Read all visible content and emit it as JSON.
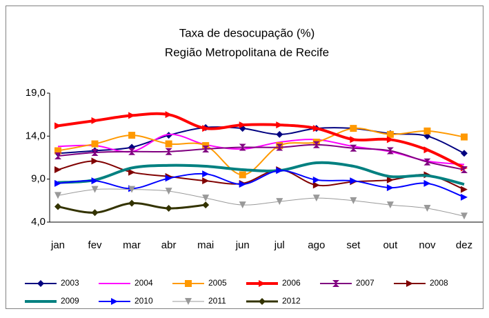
{
  "chart_data": {
    "type": "line",
    "title": "Taxa de desocupação (%)",
    "subtitle": "Região Metropolitana de Recife",
    "categories": [
      "jan",
      "fev",
      "mar",
      "abr",
      "mai",
      "jun",
      "jul",
      "ago",
      "set",
      "out",
      "nov",
      "dez"
    ],
    "ylim": [
      4,
      19
    ],
    "yticks": [
      {
        "value": 4,
        "label": "4,0"
      },
      {
        "value": 9,
        "label": "9,0"
      },
      {
        "value": 14,
        "label": "14,0"
      },
      {
        "value": 19,
        "label": "19,0"
      }
    ],
    "grid": false,
    "legend": "bottom",
    "series": [
      {
        "name": "2003",
        "color": "#000080",
        "marker": "diamond",
        "width": 2,
        "values": [
          12.0,
          12.3,
          12.7,
          14.1,
          15.0,
          14.9,
          14.2,
          14.9,
          14.9,
          14.3,
          14.0,
          12.0
        ]
      },
      {
        "name": "2004",
        "color": "#ff00ff",
        "marker": "none",
        "width": 2,
        "values": [
          12.8,
          12.9,
          12.2,
          14.2,
          13.0,
          12.5,
          13.3,
          13.6,
          12.8,
          12.2,
          11.1,
          10.7
        ]
      },
      {
        "name": "2005",
        "color": "#ff9900",
        "marker": "square",
        "width": 2,
        "values": [
          12.3,
          13.1,
          14.1,
          13.1,
          12.9,
          9.5,
          12.9,
          13.3,
          14.9,
          14.2,
          14.6,
          13.9
        ]
      },
      {
        "name": "2006",
        "color": "#ff0000",
        "marker": "triangle-right",
        "width": 4,
        "values": [
          15.2,
          15.8,
          16.4,
          16.5,
          14.9,
          15.3,
          15.3,
          14.9,
          13.6,
          13.6,
          12.4,
          10.3
        ]
      },
      {
        "name": "2007",
        "color": "#800080",
        "marker": "hourglass",
        "width": 2,
        "values": [
          11.7,
          12.1,
          12.2,
          12.2,
          12.5,
          12.7,
          12.7,
          13.0,
          12.6,
          12.3,
          11.0,
          10.1
        ]
      },
      {
        "name": "2008",
        "color": "#800000",
        "marker": "triangle-right",
        "width": 2,
        "values": [
          10.1,
          11.1,
          9.8,
          9.3,
          8.8,
          8.5,
          10.1,
          8.3,
          8.7,
          8.9,
          9.5,
          7.8
        ]
      },
      {
        "name": "2009",
        "color": "#008080",
        "marker": "none",
        "width": 4,
        "values": [
          8.6,
          8.9,
          10.3,
          10.6,
          10.5,
          10.1,
          10.0,
          10.9,
          10.5,
          9.3,
          9.4,
          8.4
        ]
      },
      {
        "name": "2010",
        "color": "#0000ff",
        "marker": "triangle-right",
        "width": 2,
        "values": [
          8.5,
          8.8,
          7.9,
          9.1,
          9.6,
          8.4,
          10.0,
          8.9,
          8.8,
          8.0,
          8.5,
          6.9
        ]
      },
      {
        "name": "2011",
        "color": "#999999",
        "marker": "triangle-down",
        "width": 1,
        "values": [
          7.1,
          7.8,
          7.8,
          7.6,
          6.8,
          6.0,
          6.4,
          6.8,
          6.5,
          6.0,
          5.6,
          4.7
        ]
      },
      {
        "name": "2012",
        "color": "#333300",
        "marker": "diamond",
        "width": 3,
        "values": [
          5.8,
          5.1,
          6.2,
          5.6,
          6.0,
          null,
          null,
          null,
          null,
          null,
          null,
          null
        ]
      }
    ]
  }
}
